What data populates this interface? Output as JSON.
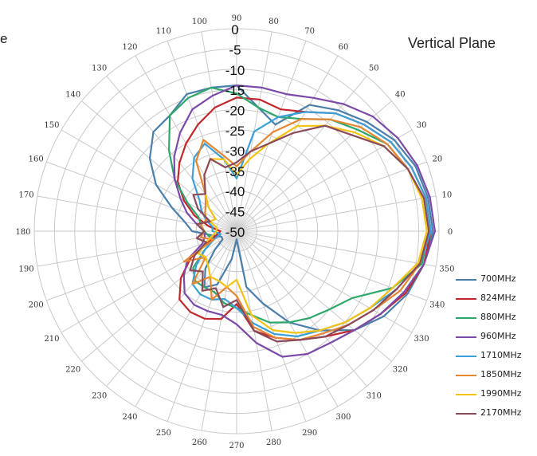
{
  "chart_data": {
    "type": "line",
    "subtype": "polar",
    "title": "Vertical Plane",
    "clipped_left_text": "e",
    "grid": true,
    "legend_position": "right-bottom",
    "radial_axis": {
      "min": -50,
      "max": 0,
      "ticks": [
        "0",
        "-5",
        "-10",
        "-15",
        "-20",
        "-25",
        "-30",
        "-35",
        "-40",
        "-45",
        "-50"
      ]
    },
    "angular_axis": {
      "ticks": [
        "0",
        "10",
        "20",
        "30",
        "40",
        "50",
        "60",
        "70",
        "80",
        "90",
        "100",
        "110",
        "120",
        "130",
        "140",
        "150",
        "160",
        "170",
        "180",
        "190",
        "200",
        "210",
        "220",
        "230",
        "240",
        "250",
        "260",
        "270",
        "280",
        "290",
        "300",
        "310",
        "320",
        "330",
        "340",
        "350"
      ]
    },
    "theta": [
      0,
      10,
      20,
      30,
      40,
      50,
      60,
      70,
      80,
      90,
      100,
      110,
      120,
      130,
      140,
      150,
      160,
      170,
      180,
      190,
      200,
      210,
      220,
      230,
      240,
      250,
      260,
      270,
      280,
      290,
      300,
      310,
      320,
      330,
      340,
      350
    ],
    "series": [
      {
        "name": "700MHz",
        "color": "#4a7eab",
        "values": [
          -1.5,
          -2,
          -3,
          -5,
          -8,
          -11,
          -14,
          -22,
          -19,
          -14,
          -14,
          -14,
          -17,
          -18,
          -22,
          -27,
          -33,
          -37,
          -39,
          -44,
          -46,
          -46,
          -43,
          -38,
          -34,
          -36,
          -43,
          -48,
          -36,
          -31,
          -24,
          -18,
          -12,
          -8,
          -5,
          -3
        ]
      },
      {
        "name": "824MHz",
        "color": "#c0282e",
        "values": [
          -2,
          -2.5,
          -4,
          -6,
          -9,
          -12,
          -16,
          -18,
          -17,
          -17,
          -19,
          -22,
          -25,
          -28,
          -31,
          -35,
          -39,
          -43,
          -46,
          -45,
          -43,
          -37,
          -32,
          -28,
          -27,
          -27,
          -28,
          -32,
          -25,
          -22,
          -19,
          -16,
          -12,
          -9,
          -5.5,
          -3
        ]
      },
      {
        "name": "880MHz",
        "color": "#2da86a",
        "values": [
          -2.5,
          -3,
          -5,
          -7,
          -11,
          -14,
          -18,
          -20,
          -19,
          -16,
          -14,
          -15,
          -17,
          -24,
          -30,
          -36,
          -40,
          -41,
          -42,
          -43,
          -44,
          -41,
          -36,
          -34,
          -34,
          -34,
          -32,
          -31,
          -29,
          -26,
          -24,
          -22,
          -20,
          -17,
          -9,
          -3.5
        ]
      },
      {
        "name": "960MHz",
        "color": "#7b4aa8",
        "values": [
          -1,
          -1.5,
          -2.5,
          -4,
          -6,
          -9,
          -12,
          -14,
          -14,
          -14,
          -16,
          -18,
          -22,
          -26,
          -30,
          -34,
          -37,
          -40,
          -42,
          -42,
          -41,
          -36,
          -33,
          -30,
          -29,
          -29,
          -29,
          -27,
          -22,
          -17,
          -15,
          -14,
          -12,
          -9,
          -6,
          -3
        ]
      },
      {
        "name": "1710MHz",
        "color": "#3aa0d8",
        "values": [
          -2,
          -2.5,
          -4,
          -6,
          -9,
          -12,
          -16,
          -20,
          -25,
          -37,
          -32,
          -27,
          -29,
          -33,
          -38,
          -40,
          -42,
          -44,
          -44,
          -46,
          -44,
          -41,
          -37,
          -33,
          -32,
          -32,
          -33,
          -31,
          -27,
          -23,
          -20,
          -18,
          -15,
          -12,
          -8,
          -4
        ]
      },
      {
        "name": "1850MHz",
        "color": "#e58732",
        "values": [
          -2.5,
          -3,
          -5,
          -7,
          -10,
          -14,
          -18,
          -24,
          -30,
          -34,
          -31,
          -26,
          -30,
          -38,
          -40,
          -41,
          -42,
          -41,
          -42,
          -41,
          -44,
          -35,
          -40,
          -33,
          -37,
          -32,
          -36,
          -34,
          -26,
          -22,
          -19,
          -17,
          -14,
          -11,
          -7,
          -4
        ]
      },
      {
        "name": "1990MHz",
        "color": "#f4c312",
        "values": [
          -3,
          -3.5,
          -5,
          -8,
          -12,
          -16,
          -20,
          -27,
          -32,
          -36,
          -32,
          -31,
          -34,
          -38,
          -41,
          -44,
          -43,
          -45,
          -45,
          -44,
          -42,
          -39,
          -40,
          -39,
          -37,
          -37,
          -36,
          -38,
          -29,
          -24,
          -21,
          -18,
          -15,
          -12,
          -9,
          -4.5
        ]
      },
      {
        "name": "2170MHz",
        "color": "#8a4a5a",
        "values": [
          -2.5,
          -3,
          -5,
          -8,
          -13,
          -16,
          -22,
          -27,
          -30,
          -33,
          -34,
          -31,
          -34,
          -38,
          -36,
          -39,
          -43,
          -40,
          -42,
          -40,
          -42,
          -38,
          -35,
          -37,
          -33,
          -35,
          -31,
          -33,
          -25,
          -21,
          -19,
          -16,
          -14,
          -11,
          -8,
          -4
        ]
      }
    ]
  }
}
